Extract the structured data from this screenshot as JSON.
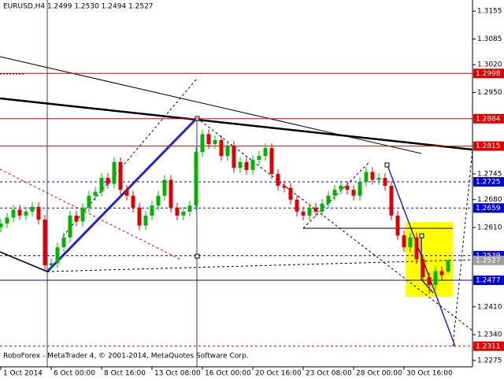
{
  "chart_data": {
    "type": "candlestick",
    "title": "EURUSD,H4 1.2499 1.2530 1.2494 1.2527",
    "footer": "RoboForex - MetaTrader 4, © 2001-2014, MetaQuotes Software Corp.",
    "up_color": "#00b400",
    "down_color": "#e00000",
    "categories": [
      "1 Oct 2014",
      null,
      null,
      null,
      null,
      null,
      null,
      null,
      "6 Oct 00:00",
      null,
      null,
      null,
      null,
      null,
      null,
      null,
      "8 Oct 16:00",
      null,
      null,
      null,
      null,
      null,
      null,
      null,
      "13 Oct 08:00",
      null,
      null,
      null,
      null,
      null,
      null,
      null,
      "16 Oct 00:00",
      null,
      null,
      null,
      null,
      null,
      null,
      null,
      "20 Oct 16:00",
      null,
      null,
      null,
      null,
      null,
      null,
      null,
      "23 Oct 08:00",
      null,
      null,
      null,
      null,
      null,
      null,
      null,
      "28 Oct 00:00",
      null,
      null,
      null,
      null,
      null,
      null,
      null,
      "30 Oct 16:00",
      null,
      null,
      null,
      null,
      null,
      null,
      null
    ],
    "ohlc": [
      [
        1.261,
        1.2632,
        1.2598,
        1.262
      ],
      [
        1.262,
        1.2647,
        1.2608,
        1.2635
      ],
      [
        1.2635,
        1.2667,
        1.2623,
        1.2655
      ],
      [
        1.2655,
        1.2667,
        1.2628,
        1.264
      ],
      [
        1.264,
        1.2662,
        1.2628,
        1.265
      ],
      [
        1.265,
        1.2674,
        1.2638,
        1.2662
      ],
      [
        1.2662,
        1.2674,
        1.2618,
        1.263
      ],
      [
        1.263,
        1.2642,
        1.2499,
        1.2515
      ],
      [
        1.2515,
        1.2532,
        1.2503,
        1.252
      ],
      [
        1.252,
        1.2572,
        1.2508,
        1.256
      ],
      [
        1.256,
        1.2597,
        1.2548,
        1.2585
      ],
      [
        1.2585,
        1.2652,
        1.2573,
        1.264
      ],
      [
        1.264,
        1.2652,
        1.2613,
        1.2625
      ],
      [
        1.2625,
        1.2672,
        1.2613,
        1.266
      ],
      [
        1.266,
        1.2702,
        1.2648,
        1.269
      ],
      [
        1.269,
        1.2712,
        1.2678,
        1.27
      ],
      [
        1.27,
        1.2747,
        1.2688,
        1.2735
      ],
      [
        1.2735,
        1.2747,
        1.2708,
        1.272
      ],
      [
        1.272,
        1.2787,
        1.2708,
        1.2775
      ],
      [
        1.2775,
        1.2787,
        1.2693,
        1.2705
      ],
      [
        1.2705,
        1.2717,
        1.2678,
        1.269
      ],
      [
        1.269,
        1.2702,
        1.2648,
        1.266
      ],
      [
        1.266,
        1.2672,
        1.2603,
        1.2615
      ],
      [
        1.2615,
        1.2652,
        1.2603,
        1.264
      ],
      [
        1.264,
        1.2677,
        1.2628,
        1.2665
      ],
      [
        1.2665,
        1.2702,
        1.2653,
        1.269
      ],
      [
        1.269,
        1.2742,
        1.2678,
        1.273
      ],
      [
        1.273,
        1.2742,
        1.2648,
        1.266
      ],
      [
        1.266,
        1.2672,
        1.2628,
        1.264
      ],
      [
        1.264,
        1.2662,
        1.2628,
        1.265
      ],
      [
        1.265,
        1.2677,
        1.2638,
        1.2665
      ],
      [
        1.2665,
        1.2812,
        1.2653,
        1.28
      ],
      [
        1.28,
        1.2857,
        1.2788,
        1.2845
      ],
      [
        1.2845,
        1.2857,
        1.2808,
        1.282
      ],
      [
        1.282,
        1.2842,
        1.2808,
        1.283
      ],
      [
        1.283,
        1.2842,
        1.2778,
        1.279
      ],
      [
        1.279,
        1.2827,
        1.2778,
        1.2815
      ],
      [
        1.2815,
        1.2827,
        1.2748,
        1.276
      ],
      [
        1.276,
        1.2787,
        1.2748,
        1.2775
      ],
      [
        1.2775,
        1.2787,
        1.2743,
        1.2755
      ],
      [
        1.2755,
        1.2792,
        1.2743,
        1.278
      ],
      [
        1.278,
        1.2802,
        1.2768,
        1.279
      ],
      [
        1.279,
        1.2822,
        1.2778,
        1.281
      ],
      [
        1.281,
        1.2822,
        1.2733,
        1.2745
      ],
      [
        1.2745,
        1.2757,
        1.2703,
        1.2715
      ],
      [
        1.2715,
        1.2727,
        1.2698,
        1.271
      ],
      [
        1.271,
        1.2722,
        1.2668,
        1.268
      ],
      [
        1.268,
        1.2692,
        1.2638,
        1.265
      ],
      [
        1.265,
        1.2662,
        1.2628,
        1.264
      ],
      [
        1.264,
        1.2672,
        1.2628,
        1.266
      ],
      [
        1.266,
        1.2672,
        1.2638,
        1.265
      ],
      [
        1.265,
        1.2682,
        1.2638,
        1.267
      ],
      [
        1.267,
        1.2702,
        1.2658,
        1.269
      ],
      [
        1.269,
        1.2717,
        1.2678,
        1.2705
      ],
      [
        1.2705,
        1.2727,
        1.2693,
        1.2715
      ],
      [
        1.2715,
        1.2727,
        1.2693,
        1.2705
      ],
      [
        1.2705,
        1.2717,
        1.2678,
        1.269
      ],
      [
        1.269,
        1.2737,
        1.2678,
        1.2725
      ],
      [
        1.2725,
        1.2762,
        1.2713,
        1.275
      ],
      [
        1.275,
        1.2762,
        1.2718,
        1.273
      ],
      [
        1.273,
        1.2747,
        1.2718,
        1.2735
      ],
      [
        1.2735,
        1.2747,
        1.2703,
        1.2715
      ],
      [
        1.2715,
        1.2727,
        1.2628,
        1.264
      ],
      [
        1.264,
        1.2652,
        1.2578,
        1.259
      ],
      [
        1.259,
        1.2602,
        1.2548,
        1.256
      ],
      [
        1.256,
        1.2597,
        1.2548,
        1.2585
      ],
      [
        1.2585,
        1.2597,
        1.2518,
        1.253
      ],
      [
        1.253,
        1.2542,
        1.2473,
        1.2485
      ],
      [
        1.2485,
        1.2497,
        1.2444,
        1.2465
      ],
      [
        1.2465,
        1.2512,
        1.2453,
        1.25
      ],
      [
        1.25,
        1.2512,
        1.2478,
        1.249
      ],
      [
        1.2499,
        1.253,
        1.2494,
        1.2527
      ]
    ],
    "ylim": [
      1.2259,
      1.3183
    ],
    "yticks": [
      1.3155,
      1.3085,
      {
        "value": 1.302,
        "label": "1.3020"
      },
      {
        "value": 1.295,
        "label": "1.2950"
      },
      1.2745,
      {
        "value": 1.268,
        "label": "1.2680"
      },
      {
        "value": 1.261,
        "label": "1.2610"
      },
      {
        "value": 1.241,
        "label": "1.2410"
      },
      {
        "value": 1.234,
        "label": "1.2340"
      },
      1.2275
    ],
    "levels": [
      {
        "value": 1.2998,
        "color": "#e00000",
        "dashed": false
      },
      {
        "value": 1.2884,
        "color": "#e00000",
        "dashed": false
      },
      {
        "value": 1.2815,
        "color": "#e00000",
        "dashed": false
      },
      {
        "value": 1.2725,
        "color": "#0000d0",
        "dashed": true
      },
      {
        "value": 1.2659,
        "color": "#0000d0",
        "dashed": true
      },
      {
        "value": 1.2539,
        "color": "#0000d0",
        "dashed": true
      },
      {
        "value": 1.2477,
        "color": "#0000d0",
        "dashed": false
      },
      {
        "value": 1.2311,
        "color": "#e00000",
        "dashed": true
      }
    ],
    "current_price": 1.2527,
    "current_price_color": "#a0a0a0"
  }
}
